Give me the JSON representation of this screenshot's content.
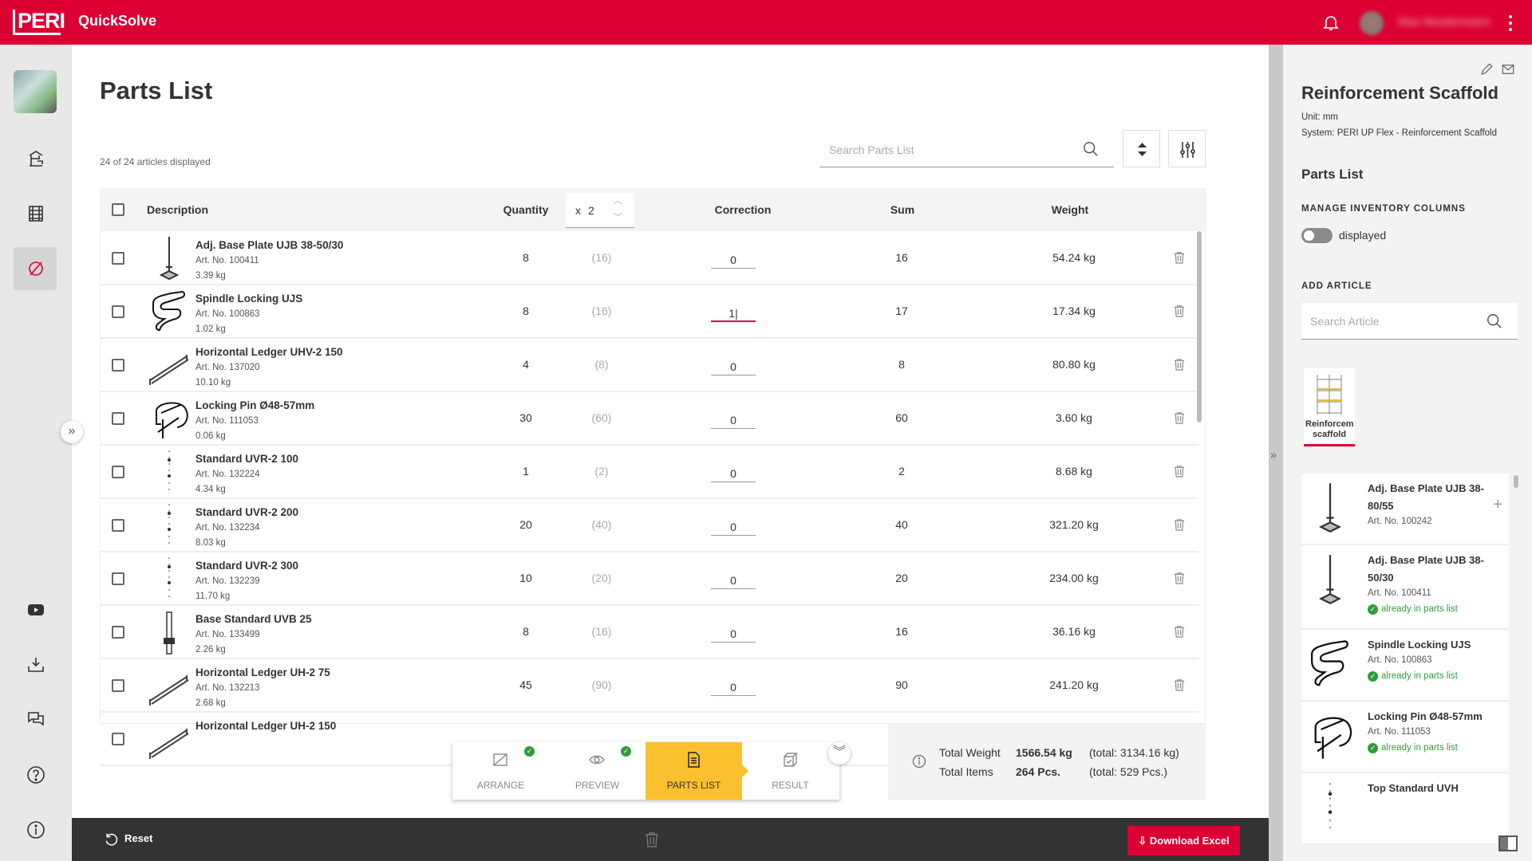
{
  "header": {
    "logo": "PERI",
    "app_title": "QuickSolve",
    "user_name": "Max Mustermann",
    "icons": [
      "bell-icon",
      "avatar",
      "more-vertical-icon"
    ],
    "brand_color": "#dc0032"
  },
  "sidebar": {
    "items": [
      "project-thumbnail",
      "crane-icon",
      "scaffold-icon",
      "parts-list-icon",
      "youtube-icon",
      "download-icon",
      "chat-icon",
      "help-icon",
      "info-icon"
    ],
    "active": "parts-list-icon"
  },
  "main": {
    "title": "Parts List",
    "count": "24 of 24 articles displayed",
    "search_placeholder": "Search Parts List",
    "columns": {
      "description": "Description",
      "quantity": "Quantity",
      "multiplier_prefix": "x",
      "multiplier": "2",
      "correction": "Correction",
      "sum": "Sum",
      "weight": "Weight"
    },
    "rows": [
      {
        "name": "Adj. Base Plate UJB 38-50/30",
        "art": "Art. No. 100411",
        "unit_weight": "3.39 kg",
        "qty": "8",
        "qty_x": "(16)",
        "correction": "0",
        "sum": "16",
        "weight": "54.24 kg",
        "img": "baseplate"
      },
      {
        "name": "Spindle Locking UJS",
        "art": "Art. No. 100863",
        "unit_weight": "1.02 kg",
        "qty": "8",
        "qty_x": "(16)",
        "correction": "1",
        "sum": "17",
        "weight": "17.34 kg",
        "img": "hook",
        "editing": true
      },
      {
        "name": "Horizontal Ledger UHV-2 150",
        "art": "Art. No. 137020",
        "unit_weight": "10.10 kg",
        "qty": "4",
        "qty_x": "(8)",
        "correction": "0",
        "sum": "8",
        "weight": "80.80 kg",
        "img": "ledger"
      },
      {
        "name": "Locking Pin Ø48-57mm",
        "art": "Art. No. 111053",
        "unit_weight": "0.06 kg",
        "qty": "30",
        "qty_x": "(60)",
        "correction": "0",
        "sum": "60",
        "weight": "3.60 kg",
        "img": "pin"
      },
      {
        "name": "Standard UVR-2 100",
        "art": "Art. No. 132224",
        "unit_weight": "4.34 kg",
        "qty": "1",
        "qty_x": "(2)",
        "correction": "0",
        "sum": "2",
        "weight": "8.68 kg",
        "img": "standard"
      },
      {
        "name": "Standard UVR-2 200",
        "art": "Art. No. 132234",
        "unit_weight": "8.03 kg",
        "qty": "20",
        "qty_x": "(40)",
        "correction": "0",
        "sum": "40",
        "weight": "321.20 kg",
        "img": "standard"
      },
      {
        "name": "Standard UVR-2 300",
        "art": "Art. No. 132239",
        "unit_weight": "11.70 kg",
        "qty": "10",
        "qty_x": "(20)",
        "correction": "0",
        "sum": "20",
        "weight": "234.00 kg",
        "img": "standard"
      },
      {
        "name": "Base Standard UVB 25",
        "art": "Art. No. 133499",
        "unit_weight": "2.26 kg",
        "qty": "8",
        "qty_x": "(16)",
        "correction": "0",
        "sum": "16",
        "weight": "36.16 kg",
        "img": "base"
      },
      {
        "name": "Horizontal Ledger UH-2 75",
        "art": "Art. No. 132213",
        "unit_weight": "2.68 kg",
        "qty": "45",
        "qty_x": "(90)",
        "correction": "0",
        "sum": "90",
        "weight": "241.20 kg",
        "img": "ledger"
      },
      {
        "name": "Horizontal Ledger UH-2 150",
        "art": "",
        "unit_weight": "",
        "qty": "",
        "qty_x": "",
        "correction": "",
        "sum": "",
        "weight": "",
        "img": "ledger"
      }
    ],
    "steps": [
      {
        "label": "ARRANGE",
        "done": true
      },
      {
        "label": "PREVIEW",
        "done": true
      },
      {
        "label": "PARTS LIST",
        "active": true
      },
      {
        "label": "RESULT"
      }
    ],
    "summary": {
      "weight_label": "Total Weight",
      "weight": "1566.54 kg",
      "weight_total": "(total: 3134.16 kg)",
      "items_label": "Total Items",
      "items": "264 Pcs.",
      "items_total": "(total: 529 Pcs.)"
    },
    "footer": {
      "reset": "Reset",
      "download": "Download Excel"
    },
    "accent_step_color": "#fbc02d"
  },
  "panel": {
    "title": "Reinforcement Scaffold",
    "unit": "Unit: mm",
    "system": "System: PERI UP Flex - Reinforcement Scaffold",
    "section": "Parts List",
    "manage_label": "MANAGE INVENTORY COLUMNS",
    "toggle_label": "displayed",
    "toggle_on": false,
    "add_label": "ADD ARTICLE",
    "search_placeholder": "Search Article",
    "tile_label": "Reinforcem scaffold",
    "articles": [
      {
        "name": "Adj. Base Plate UJB 38-80/55",
        "art": "Art. No. 100242",
        "status": "",
        "img": "baseplate"
      },
      {
        "name": "Adj. Base Plate UJB 38-50/30",
        "art": "Art. No. 100411",
        "status": "already in parts list",
        "img": "baseplate"
      },
      {
        "name": "Spindle Locking UJS",
        "art": "Art. No. 100863",
        "status": "already in parts list",
        "img": "hook"
      },
      {
        "name": "Locking Pin Ø48-57mm",
        "art": "Art. No. 111053",
        "status": "already in parts list",
        "img": "pin"
      },
      {
        "name": "Top Standard UVH",
        "art": "",
        "status": "",
        "img": "standard"
      }
    ]
  }
}
